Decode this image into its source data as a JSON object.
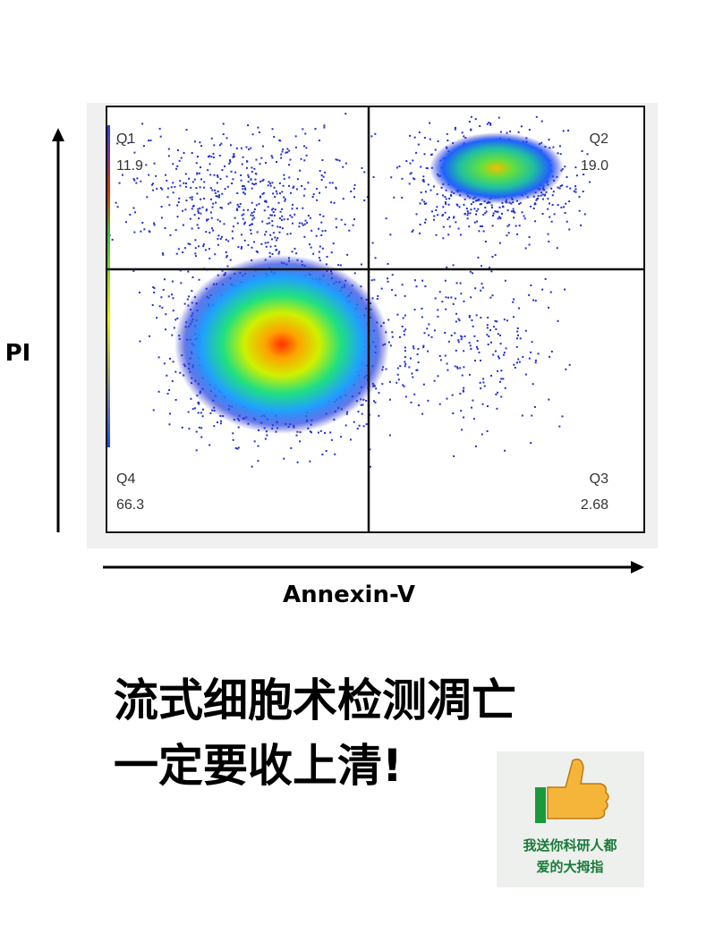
{
  "plot": {
    "y_label": "PI",
    "x_label": "Annexin-V",
    "quadrants": [
      {
        "name": "Q1",
        "value": "11.9"
      },
      {
        "name": "Q2",
        "value": "19.0"
      },
      {
        "name": "Q3",
        "value": "2.68"
      },
      {
        "name": "Q4",
        "value": "66.3"
      }
    ]
  },
  "caption": {
    "lines": [
      "流式细胞术检测凋亡",
      "一定要收上清!"
    ]
  },
  "sticker": {
    "lines": [
      "我送你科研人都",
      "爱的大拇指"
    ]
  }
}
